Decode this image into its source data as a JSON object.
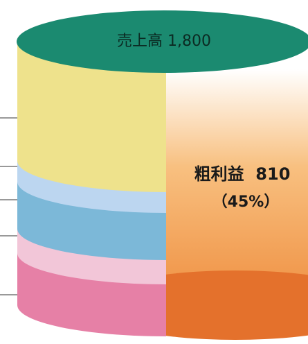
{
  "top": {
    "label": "売上高 1,800"
  },
  "right": {
    "label": "粗利益  810",
    "sublabel": "（45%）"
  }
}
